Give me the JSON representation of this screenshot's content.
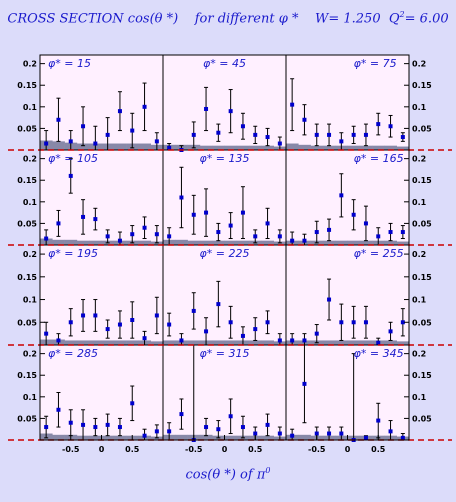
{
  "title": {
    "main": "CROSS SECTION  cos(θ *)",
    "phi_text": "for different  φ *",
    "w_text": "W= 1.250",
    "q2_label": "Q",
    "q2_sup": "2",
    "q2_value": "= 6.00"
  },
  "x_axis": {
    "label_main": "cos(θ *)  of  π",
    "label_sup": "0",
    "tick_labels": [
      "-0.5",
      "0",
      "0.5"
    ]
  },
  "colors": {
    "background": "#dcdcfa",
    "panel_fill": "#fff0ff",
    "text": "#1a1acc",
    "marker": "#0000cc",
    "band": "#8888a8",
    "zero_line": "#cc0000"
  },
  "chart_data": {
    "type": "scatter",
    "grid": false,
    "xlim": [
      -1,
      1
    ],
    "ylim": [
      0,
      0.22
    ],
    "y_ticks": [
      0.05,
      0.1,
      0.15,
      0.2
    ],
    "y_tick_labels": [
      "0.05",
      "0.1",
      "0.15",
      "0.2"
    ],
    "x_ticks": [
      -0.5,
      0,
      0.5
    ],
    "x_tick_labels": [
      "-0.5",
      "0",
      "0.5"
    ],
    "x": [
      -0.9,
      -0.7,
      -0.5,
      -0.3,
      -0.1,
      0.1,
      0.3,
      0.5,
      0.7,
      0.9
    ],
    "panels": [
      {
        "label": "φ* = 15",
        "y": [
          0.015,
          0.07,
          0.02,
          0.055,
          0.015,
          0.035,
          0.09,
          0.045,
          0.1,
          0.02
        ],
        "err": [
          0.03,
          0.05,
          0.025,
          0.045,
          0.04,
          0.04,
          0.045,
          0.04,
          0.055,
          0.02
        ],
        "band": [
          0.022,
          0.02,
          0.017,
          0.015,
          0.015,
          0.015,
          0.015,
          0.015,
          0.015,
          0.012
        ]
      },
      {
        "label": "φ* = 45",
        "y": [
          0.005,
          0.0,
          0.035,
          0.095,
          0.04,
          0.09,
          0.055,
          0.035,
          0.03,
          0.015
        ],
        "err": [
          0.01,
          0.01,
          0.03,
          0.05,
          0.02,
          0.05,
          0.03,
          0.02,
          0.02,
          0.015
        ],
        "band": [
          0.012,
          0.012,
          0.012,
          0.01,
          0.01,
          0.01,
          0.01,
          0.01,
          0.01,
          0.008
        ]
      },
      {
        "label": "φ* = 75",
        "y": [
          0.105,
          0.07,
          0.035,
          0.035,
          0.02,
          0.035,
          0.035,
          0.06,
          0.055,
          0.03
        ],
        "err": [
          0.06,
          0.035,
          0.025,
          0.025,
          0.02,
          0.02,
          0.025,
          0.025,
          0.025,
          0.01
        ],
        "band": [
          0.015,
          0.012,
          0.01,
          0.01,
          0.01,
          0.01,
          0.01,
          0.01,
          0.01,
          0.008
        ]
      },
      {
        "label": "φ* = 105",
        "y": [
          0.015,
          0.05,
          0.16,
          0.065,
          0.06,
          0.02,
          0.01,
          0.025,
          0.04,
          0.025
        ],
        "err": [
          0.02,
          0.03,
          0.04,
          0.04,
          0.025,
          0.015,
          0.02,
          0.02,
          0.025,
          0.02
        ],
        "band": [
          0.015,
          0.012,
          0.012,
          0.01,
          0.01,
          0.01,
          0.01,
          0.01,
          0.01,
          0.008
        ]
      },
      {
        "label": "φ* = 135",
        "y": [
          0.02,
          0.11,
          0.07,
          0.075,
          0.03,
          0.045,
          0.075,
          0.02,
          0.05,
          0.02
        ],
        "err": [
          0.02,
          0.07,
          0.045,
          0.055,
          0.02,
          0.03,
          0.06,
          0.015,
          0.035,
          0.015
        ],
        "band": [
          0.012,
          0.012,
          0.01,
          0.01,
          0.01,
          0.01,
          0.01,
          0.01,
          0.01,
          0.008
        ]
      },
      {
        "label": "φ* = 165",
        "y": [
          0.01,
          0.01,
          0.03,
          0.035,
          0.115,
          0.07,
          0.05,
          0.02,
          0.03,
          0.03
        ],
        "err": [
          0.02,
          0.015,
          0.025,
          0.025,
          0.05,
          0.035,
          0.04,
          0.02,
          0.02,
          0.015
        ],
        "band": [
          0.01,
          0.01,
          0.01,
          0.01,
          0.01,
          0.01,
          0.01,
          0.01,
          0.01,
          0.008
        ]
      },
      {
        "label": "φ* = 195",
        "y": [
          0.025,
          0.01,
          0.05,
          0.065,
          0.065,
          0.035,
          0.045,
          0.055,
          0.015,
          0.065
        ],
        "err": [
          0.025,
          0.015,
          0.03,
          0.035,
          0.035,
          0.02,
          0.03,
          0.04,
          0.015,
          0.04
        ],
        "band": [
          0.012,
          0.012,
          0.01,
          0.01,
          0.01,
          0.01,
          0.01,
          0.01,
          0.01,
          0.008
        ]
      },
      {
        "label": "φ* = 225",
        "y": [
          0.045,
          0.01,
          0.075,
          0.03,
          0.09,
          0.05,
          0.02,
          0.035,
          0.05,
          0.01
        ],
        "err": [
          0.025,
          0.015,
          0.04,
          0.03,
          0.05,
          0.035,
          0.02,
          0.025,
          0.025,
          0.015
        ],
        "band": [
          0.01,
          0.01,
          0.01,
          0.01,
          0.01,
          0.01,
          0.01,
          0.01,
          0.01,
          0.008
        ]
      },
      {
        "label": "φ* = 255",
        "y": [
          0.01,
          0.01,
          0.025,
          0.1,
          0.05,
          0.05,
          0.05,
          0.005,
          0.03,
          0.05
        ],
        "err": [
          0.015,
          0.015,
          0.02,
          0.045,
          0.04,
          0.035,
          0.035,
          0.01,
          0.02,
          0.03
        ],
        "band": [
          0.01,
          0.01,
          0.01,
          0.01,
          0.01,
          0.01,
          0.01,
          0.01,
          0.01,
          0.008
        ]
      },
      {
        "label": "φ* = 285",
        "y": [
          0.03,
          0.07,
          0.04,
          0.035,
          0.03,
          0.035,
          0.03,
          0.085,
          0.01,
          0.02
        ],
        "err": [
          0.025,
          0.04,
          0.03,
          0.035,
          0.02,
          0.025,
          0.02,
          0.04,
          0.015,
          0.015
        ],
        "band": [
          0.015,
          0.012,
          0.012,
          0.01,
          0.01,
          0.01,
          0.01,
          0.01,
          0.01,
          0.008
        ]
      },
      {
        "label": "φ* = 315",
        "y": [
          0.02,
          0.06,
          0.0,
          0.03,
          0.025,
          0.055,
          0.03,
          0.015,
          0.035,
          0.015
        ],
        "err": [
          0.02,
          0.035,
          0.22,
          0.02,
          0.02,
          0.04,
          0.025,
          0.015,
          0.025,
          0.015
        ],
        "band": [
          0.012,
          0.012,
          0.012,
          0.012,
          0.01,
          0.01,
          0.01,
          0.01,
          0.01,
          0.008
        ]
      },
      {
        "label": "φ* = 345",
        "y": [
          0.01,
          0.13,
          0.015,
          0.015,
          0.015,
          0.0,
          0.005,
          0.045,
          0.02,
          0.005
        ],
        "err": [
          0.015,
          0.09,
          0.015,
          0.015,
          0.015,
          0.2,
          0.005,
          0.04,
          0.025,
          0.01
        ],
        "band": [
          0.012,
          0.012,
          0.01,
          0.01,
          0.01,
          0.01,
          0.01,
          0.01,
          0.01,
          0.008
        ]
      }
    ]
  }
}
